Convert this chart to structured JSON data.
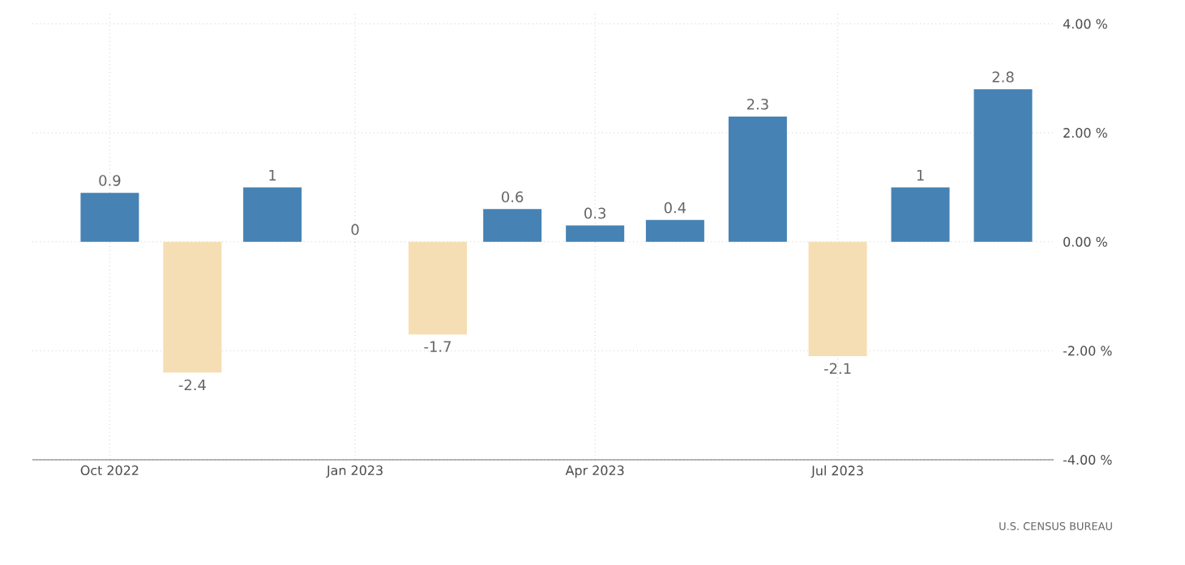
{
  "chart_data": {
    "type": "bar",
    "x": [
      "2022-10",
      "2022-11",
      "2022-12",
      "2023-01",
      "2023-02",
      "2023-03",
      "2023-04",
      "2023-05",
      "2023-06",
      "2023-07",
      "2023-08",
      "2023-09"
    ],
    "values": [
      0.9,
      -2.4,
      1,
      0,
      -1.7,
      0.6,
      0.3,
      0.4,
      2.3,
      -2.1,
      1,
      2.8
    ],
    "colors": [
      "#4682b4",
      "#f5deb3",
      "#4682b4",
      "#4682b4",
      "#f5deb3",
      "#4682b4",
      "#4682b4",
      "#4682b4",
      "#4682b4",
      "#f5deb3",
      "#4682b4",
      "#4682b4"
    ],
    "data_labels": true,
    "xlim": [
      "2022-09-02",
      "2023-09-20"
    ],
    "xticks": [
      {
        "value": "2022-10",
        "label": "Oct 2022"
      },
      {
        "value": "2023-01",
        "label": "Jan 2023"
      },
      {
        "value": "2023-04",
        "label": "Apr 2023"
      },
      {
        "value": "2023-07",
        "label": "Jul 2023"
      }
    ],
    "ylim": [
      -4,
      4.2
    ],
    "yticks": [
      {
        "value": -4,
        "label": "-4.00 %"
      },
      {
        "value": -2,
        "label": "-2.00 %"
      },
      {
        "value": 0,
        "label": "0.00 %"
      },
      {
        "value": 2,
        "label": "2.00 %"
      },
      {
        "value": 4,
        "label": "4.00 %"
      }
    ],
    "grid": true,
    "annotations": [
      "U.S. CENSUS BUREAU"
    ]
  }
}
